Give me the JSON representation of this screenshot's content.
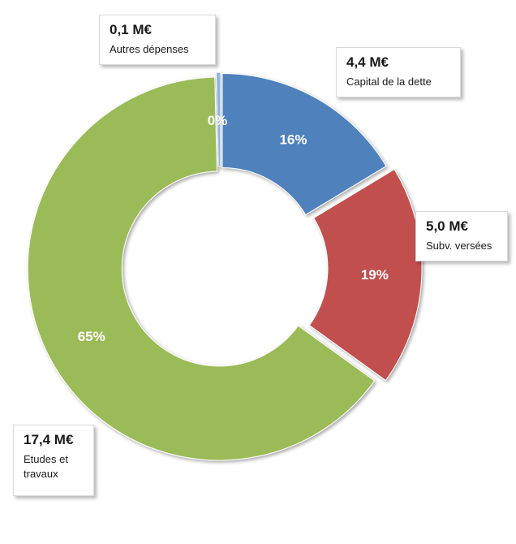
{
  "chart_data": {
    "type": "pie",
    "variant": "donut",
    "categories": [
      "Capital de la dette",
      "Subv. versées",
      "Etudes et travaux",
      "Autres dépenses"
    ],
    "amounts": [
      "4,4 M€",
      "5,0 M€",
      "17,4 M€",
      "0,1 M€"
    ],
    "values": [
      4.4,
      5.0,
      17.4,
      0.1
    ],
    "percent_labels": [
      "16%",
      "19%",
      "65%",
      "0%"
    ],
    "colors": [
      "#4f81bd",
      "#c0504d",
      "#9bbb59",
      "#8eb4e3"
    ],
    "title": "",
    "legend": "callouts"
  }
}
